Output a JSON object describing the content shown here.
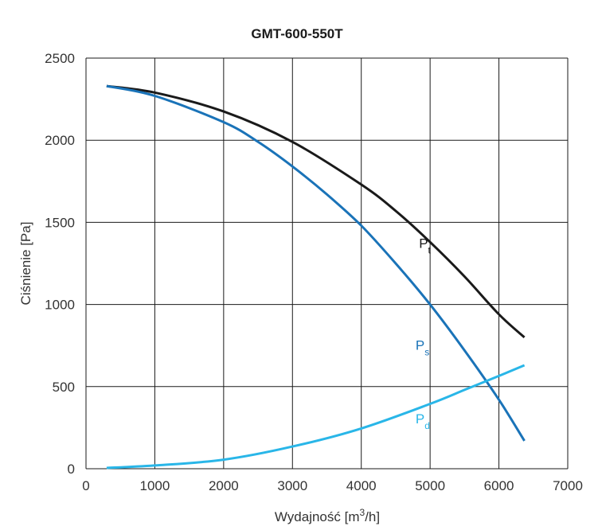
{
  "chart_data": {
    "type": "line",
    "title": "GMT-600-550T",
    "xlabel_prefix": "Wydajność [m",
    "xlabel_sup": "3",
    "xlabel_suffix": "/h]",
    "ylabel": "Ciśnienie [Pa]",
    "xlim": [
      0,
      7000
    ],
    "ylim": [
      0,
      2500
    ],
    "x_ticks": [
      0,
      1000,
      2000,
      3000,
      4000,
      5000,
      6000,
      7000
    ],
    "y_ticks": [
      0,
      500,
      1000,
      1500,
      2000,
      2500
    ],
    "grid": true,
    "series": [
      {
        "name": "P",
        "subscript": "t",
        "color": "#1a1a1a",
        "x": [
          300,
          1000,
          2000,
          3000,
          4000,
          4500,
          5000,
          5500,
          6000,
          6370
        ],
        "y": [
          2330,
          2290,
          2175,
          1990,
          1730,
          1570,
          1380,
          1170,
          940,
          800
        ]
      },
      {
        "name": "P",
        "subscript": "s",
        "color": "#1a73b8",
        "x": [
          300,
          1000,
          2000,
          2500,
          3000,
          3500,
          4000,
          4500,
          5000,
          5500,
          6000,
          6370
        ],
        "y": [
          2330,
          2270,
          2110,
          1990,
          1840,
          1670,
          1480,
          1250,
          1000,
          720,
          420,
          170
        ]
      },
      {
        "name": "P",
        "subscript": "d",
        "color": "#29b6e8",
        "x": [
          300,
          1000,
          2000,
          3000,
          4000,
          5000,
          5500,
          6000,
          6370
        ],
        "y": [
          5,
          20,
          55,
          135,
          245,
          395,
          480,
          565,
          630
        ]
      }
    ]
  }
}
